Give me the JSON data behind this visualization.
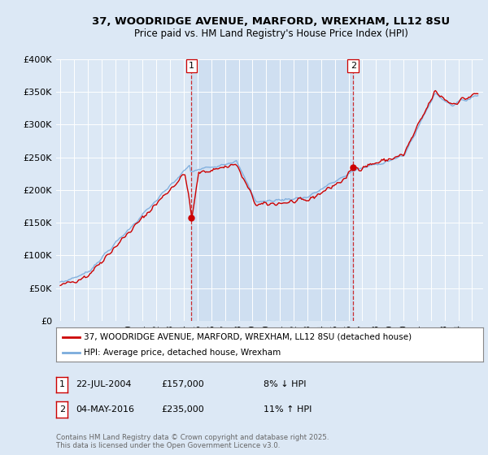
{
  "title_line1": "37, WOODRIDGE AVENUE, MARFORD, WREXHAM, LL12 8SU",
  "title_line2": "Price paid vs. HM Land Registry's House Price Index (HPI)",
  "background_color": "#dce8f5",
  "plot_bg_color": "#dce8f5",
  "shaded_region_color": "#c8ddf0",
  "legend_label_red": "37, WOODRIDGE AVENUE, MARFORD, WREXHAM, LL12 8SU (detached house)",
  "legend_label_blue": "HPI: Average price, detached house, Wrexham",
  "footer": "Contains HM Land Registry data © Crown copyright and database right 2025.\nThis data is licensed under the Open Government Licence v3.0.",
  "sale1_date": "22-JUL-2004",
  "sale1_price": "£157,000",
  "sale1_hpi": "8% ↓ HPI",
  "sale2_date": "04-MAY-2016",
  "sale2_price": "£235,000",
  "sale2_hpi": "11% ↑ HPI",
  "red_color": "#cc0000",
  "blue_color": "#7aabdc",
  "vline_color": "#cc0000",
  "ylim": [
    0,
    400000
  ],
  "yticks": [
    0,
    50000,
    100000,
    150000,
    200000,
    250000,
    300000,
    350000,
    400000
  ],
  "ytick_labels": [
    "£0",
    "£50K",
    "£100K",
    "£150K",
    "£200K",
    "£250K",
    "£300K",
    "£350K",
    "£400K"
  ]
}
